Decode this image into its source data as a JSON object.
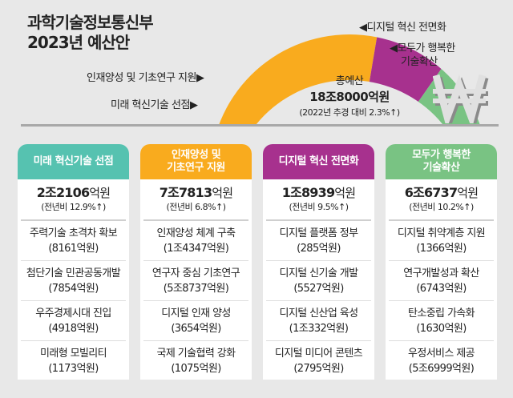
{
  "title": {
    "line1": "과학기술정보통신부",
    "line2": "2023년 예산안"
  },
  "total": {
    "label": "총예산",
    "value": "18조8000억원",
    "change": "(2022년 추경 대비 2.3%↑)"
  },
  "chart_data": {
    "type": "pie",
    "style": "half-donut",
    "categories": [
      "미래 혁신기술 선점",
      "인재양성 및 기초연구 지원",
      "디지털 혁신 전면화",
      "모두가 행복한 기술확산"
    ],
    "values": [
      22106,
      77813,
      18939,
      66737
    ],
    "unit": "억원",
    "colors": [
      "#56c2b0",
      "#f9ab1e",
      "#a7318e",
      "#79c383"
    ]
  },
  "labels": {
    "l0": "미래 혁신기술 선점▶",
    "l1": "인재양성 및 기초연구 지원▶",
    "l2": "◀디지털 혁신 전면화",
    "l3a": "◀모두가 행복한",
    "l3b": "기술확산"
  },
  "columns": [
    {
      "header": [
        "미래 혁신기술 선점"
      ],
      "color": "#56c2b0",
      "amount_big": "2조2106",
      "amount_unit": "억원",
      "change": "(전년비 12.9%↑)",
      "items": [
        {
          "name": "주력기술 초격차 확보",
          "amount": "(8161억원)"
        },
        {
          "name": "첨단기술 민관공동개발",
          "amount": "(7854억원)"
        },
        {
          "name": "우주경제시대 진입",
          "amount": "(4918억원)"
        },
        {
          "name": "미래형 모빌리티",
          "amount": "(1173억원)"
        }
      ]
    },
    {
      "header": [
        "인재양성 및",
        "기초연구 지원"
      ],
      "color": "#f9ab1e",
      "amount_big": "7조7813",
      "amount_unit": "억원",
      "change": "(전년비 6.8%↑)",
      "items": [
        {
          "name": "인재양성 체계 구축",
          "amount": "(1조4347억원)"
        },
        {
          "name": "연구자 중심 기초연구",
          "amount": "(5조8737억원)"
        },
        {
          "name": "디지털 인재 양성",
          "amount": "(3654억원)"
        },
        {
          "name": "국제 기술협력 강화",
          "amount": "(1075억원)"
        }
      ]
    },
    {
      "header": [
        "디지털 혁신 전면화"
      ],
      "color": "#a7318e",
      "amount_big": "1조8939",
      "amount_unit": "억원",
      "change": "(전년비 9.5%↑)",
      "items": [
        {
          "name": "디지털 플랫폼 정부",
          "amount": "(285억원)"
        },
        {
          "name": "디지털 신기술 개발",
          "amount": "(5527억원)"
        },
        {
          "name": "디지털 신산업 육성",
          "amount": "(1조332억원)"
        },
        {
          "name": "디지털 미디어 콘텐츠",
          "amount": "(2795억원)"
        }
      ]
    },
    {
      "header": [
        "모두가 행복한",
        "기술확산"
      ],
      "color": "#79c383",
      "amount_big": "6조6737",
      "amount_unit": "억원",
      "change": "(전년비 10.2%↑)",
      "items": [
        {
          "name": "디지털 취약계층 지원",
          "amount": "(1366억원)"
        },
        {
          "name": "연구개발성과 확산",
          "amount": "(6743억원)"
        },
        {
          "name": "탄소중립 가속화",
          "amount": "(1630억원)"
        },
        {
          "name": "우정서비스 제공",
          "amount": "(5조6999억원)"
        }
      ]
    }
  ]
}
